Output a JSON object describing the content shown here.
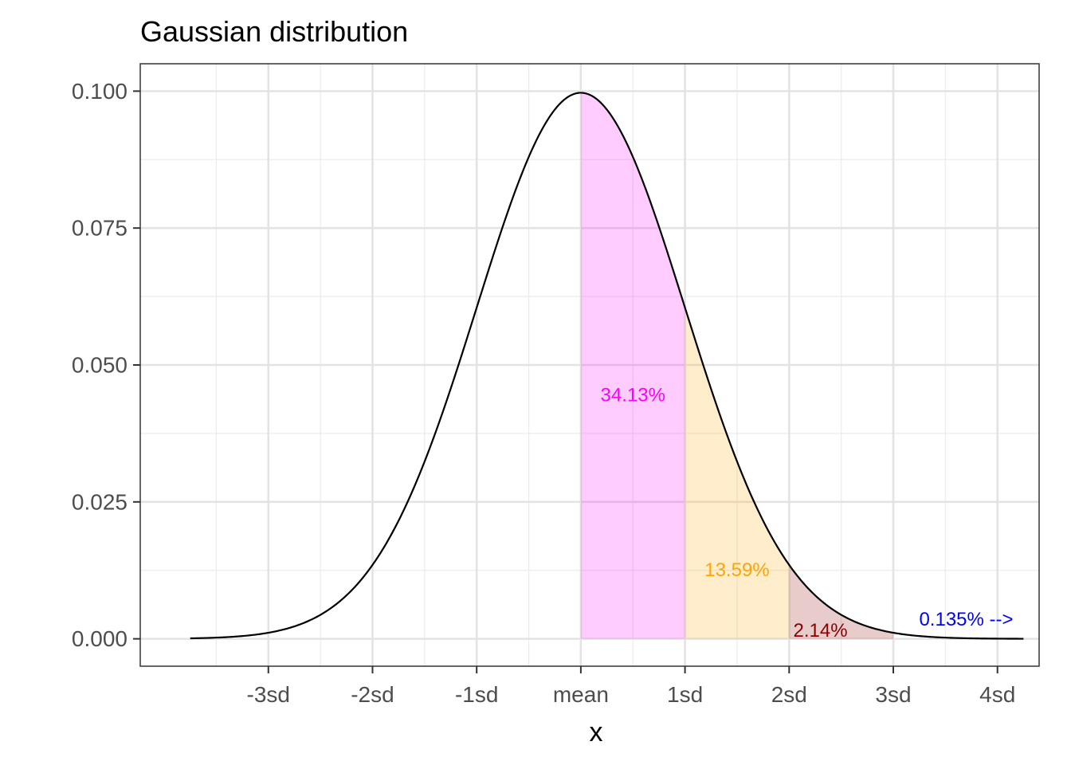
{
  "chart_data": {
    "type": "area",
    "title": "Gaussian distribution",
    "xlabel": "x",
    "ylabel": "",
    "xlim": [
      -4.23,
      4.4
    ],
    "ylim": [
      -0.005,
      0.105
    ],
    "grid": true,
    "theme": "black-and-white panel, light grey gridlines",
    "x_ticks": [
      {
        "value": -3,
        "label": "-3sd"
      },
      {
        "value": -2,
        "label": "-2sd"
      },
      {
        "value": -1,
        "label": "-1sd"
      },
      {
        "value": 0,
        "label": "mean"
      },
      {
        "value": 1,
        "label": "1sd"
      },
      {
        "value": 2,
        "label": "2sd"
      },
      {
        "value": 3,
        "label": "3sd"
      },
      {
        "value": 4,
        "label": "4sd"
      }
    ],
    "y_ticks": [
      {
        "value": 0.0,
        "label": "0.000"
      },
      {
        "value": 0.025,
        "label": "0.025"
      },
      {
        "value": 0.05,
        "label": "0.050"
      },
      {
        "value": 0.075,
        "label": "0.075"
      },
      {
        "value": 0.1,
        "label": "0.100"
      }
    ],
    "curve": {
      "mean": 0,
      "sd": 1,
      "peak_density": 0.0997,
      "x_range": [
        -3.75,
        4.25
      ],
      "color": "#000000"
    },
    "shaded_regions": [
      {
        "from": 0,
        "to": 1,
        "color": "#ff00ff",
        "opacity": 0.2
      },
      {
        "from": 1,
        "to": 2,
        "color": "#ffa500",
        "opacity": 0.2
      },
      {
        "from": 2,
        "to": 3,
        "color": "#8b0000",
        "opacity": 0.2
      }
    ],
    "annotations": [
      {
        "text": "34.13%",
        "x": 0.5,
        "y": 0.0445,
        "color": "#ff00ff"
      },
      {
        "text": "13.59%",
        "x": 1.5,
        "y": 0.0125,
        "color": "#ffa500"
      },
      {
        "text": "2.14%",
        "x": 2.3,
        "y": 0.0015,
        "color": "#8b0000"
      },
      {
        "text": "0.135% -->",
        "x": 3.7,
        "y": 0.0035,
        "color": "#0000ff"
      }
    ]
  }
}
